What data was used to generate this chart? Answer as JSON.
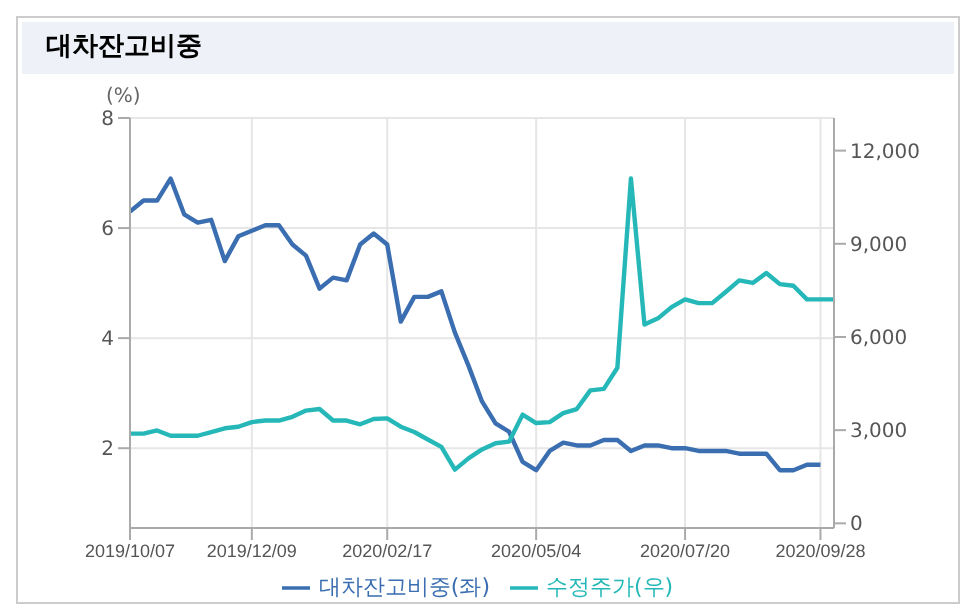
{
  "chart_data": {
    "type": "line",
    "title": "대차잔고비중",
    "ylabel": "(%)",
    "x": [
      "2019-10-07",
      "2019-10-14",
      "2019-10-21",
      "2019-10-28",
      "2019-11-04",
      "2019-11-11",
      "2019-11-18",
      "2019-11-25",
      "2019-12-02",
      "2019-12-09",
      "2019-12-16",
      "2019-12-23",
      "2019-12-30",
      "2020-01-06",
      "2020-01-13",
      "2020-01-20",
      "2020-01-27",
      "2020-02-03",
      "2020-02-10",
      "2020-02-17",
      "2020-02-24",
      "2020-03-02",
      "2020-03-09",
      "2020-03-16",
      "2020-03-23",
      "2020-03-30",
      "2020-04-06",
      "2020-04-13",
      "2020-04-20",
      "2020-04-27",
      "2020-05-04",
      "2020-05-11",
      "2020-05-18",
      "2020-05-25",
      "2020-06-01",
      "2020-06-08",
      "2020-06-15",
      "2020-06-22",
      "2020-06-29",
      "2020-07-06",
      "2020-07-13",
      "2020-07-20",
      "2020-07-27",
      "2020-08-03",
      "2020-08-10",
      "2020-08-17",
      "2020-08-24",
      "2020-08-31",
      "2020-09-07",
      "2020-09-14",
      "2020-09-21",
      "2020-09-28",
      "2020-10-05"
    ],
    "series": [
      {
        "name": "대차잔고비중(좌)",
        "color": "#3a6eb0",
        "values": [
          6.3,
          6.5,
          6.5,
          6.9,
          6.25,
          6.1,
          6.15,
          5.4,
          5.85,
          5.95,
          6.05,
          6.05,
          5.7,
          5.5,
          4.9,
          5.1,
          5.05,
          5.7,
          5.9,
          5.7,
          4.3,
          4.75,
          4.75,
          4.85,
          4.1,
          3.5,
          2.85,
          2.45,
          2.3,
          1.75,
          1.6,
          1.95,
          2.1,
          2.05,
          2.05,
          2.15,
          2.15,
          1.95,
          2.05,
          2.05,
          2.0,
          2.0,
          1.95,
          1.95,
          1.95,
          1.9,
          1.9,
          1.9,
          1.6,
          1.6,
          1.7,
          1.7,
          null
        ]
      },
      {
        "name": "수정주가(우)",
        "color": "#26b8b8",
        "axis": "y2",
        "values": [
          2890,
          2890,
          2990,
          2820,
          2820,
          2820,
          2940,
          3060,
          3110,
          3260,
          3310,
          3310,
          3430,
          3630,
          3680,
          3310,
          3310,
          3190,
          3360,
          3380,
          3110,
          2940,
          2700,
          2460,
          1730,
          2090,
          2380,
          2580,
          2630,
          3500,
          3230,
          3260,
          3550,
          3680,
          4280,
          4330,
          5010,
          11100,
          6400,
          6600,
          6960,
          7210,
          7090,
          7090,
          7450,
          7820,
          7740,
          8060,
          7700,
          7650,
          7210,
          7210,
          7210
        ]
      }
    ],
    "xlim": [
      "2019-10-07",
      "2020-10-05"
    ],
    "xticks": [
      {
        "value": "2019-10-07",
        "label": "2019/10/07"
      },
      {
        "value": "2019-12-09",
        "label": "2019/12/09"
      },
      {
        "value": "2020-02-17",
        "label": "2020/02/17"
      },
      {
        "value": "2020-05-04",
        "label": "2020/05/04"
      },
      {
        "value": "2020-07-20",
        "label": "2020/07/20"
      },
      {
        "value": "2020-09-28",
        "label": "2020/09/28"
      }
    ],
    "ylim": [
      0.55,
      8
    ],
    "yticks": [
      2,
      4,
      6,
      8
    ],
    "y2lim": [
      -150,
      13050
    ],
    "y2ticks": [
      {
        "value": 0,
        "label": "0"
      },
      {
        "value": 3000,
        "label": "3,000"
      },
      {
        "value": 6000,
        "label": "6,000"
      },
      {
        "value": 9000,
        "label": "9,000"
      },
      {
        "value": 12000,
        "label": "12,000"
      }
    ],
    "grid": true,
    "legend": "bottom",
    "marker": "none",
    "line_style": "solid"
  }
}
